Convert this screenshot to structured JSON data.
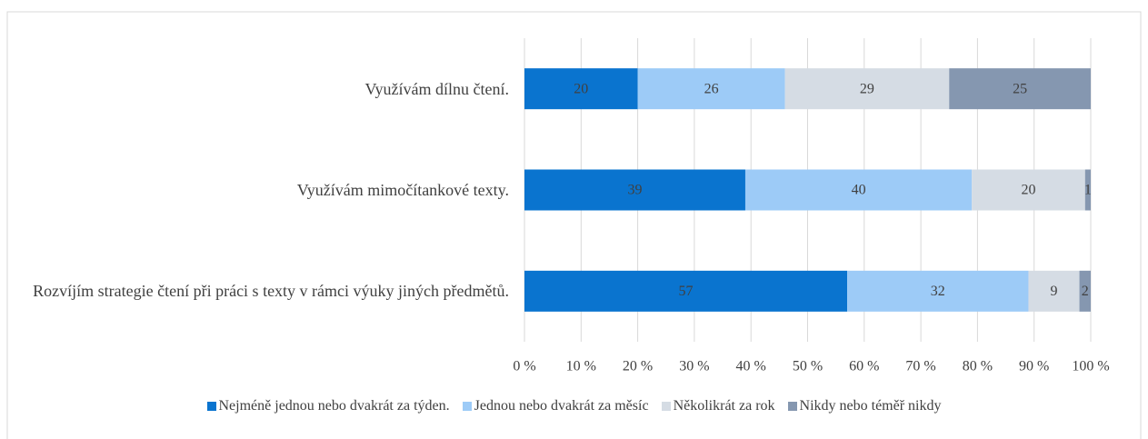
{
  "chart_data": {
    "type": "stacked_barh",
    "categories": [
      "Využívám dílnu čtení.",
      "Využívám mimočítankové texty.",
      "Rozvíjím strategie čtení při práci s texty v rámci výuky jiných předmětů."
    ],
    "series": [
      {
        "name": "Nejméně jednou nebo dvakrát za týden.",
        "color": "#0a74cf",
        "values": [
          20,
          39,
          57
        ]
      },
      {
        "name": "Jednou nebo dvakrát za měsíc",
        "color": "#9dcbf7",
        "values": [
          26,
          40,
          32
        ]
      },
      {
        "name": "Několikrát za rok",
        "color": "#d5dce4",
        "values": [
          29,
          20,
          9
        ]
      },
      {
        "name": "Nikdy nebo téměř nikdy",
        "color": "#8597b0",
        "values": [
          25,
          1,
          2
        ]
      }
    ],
    "xlim": [
      0,
      100
    ],
    "xticks": [
      {
        "value": 0,
        "label": "0 %"
      },
      {
        "value": 10,
        "label": "10 %"
      },
      {
        "value": 20,
        "label": "20 %"
      },
      {
        "value": 30,
        "label": "30 %"
      },
      {
        "value": 40,
        "label": "40 %"
      },
      {
        "value": 50,
        "label": "50 %"
      },
      {
        "value": 60,
        "label": "60 %"
      },
      {
        "value": 70,
        "label": "70 %"
      },
      {
        "value": 80,
        "label": "80 %"
      },
      {
        "value": 90,
        "label": "90 %"
      },
      {
        "value": 100,
        "label": "100 %"
      }
    ],
    "grid": true,
    "legend": "bottom"
  }
}
